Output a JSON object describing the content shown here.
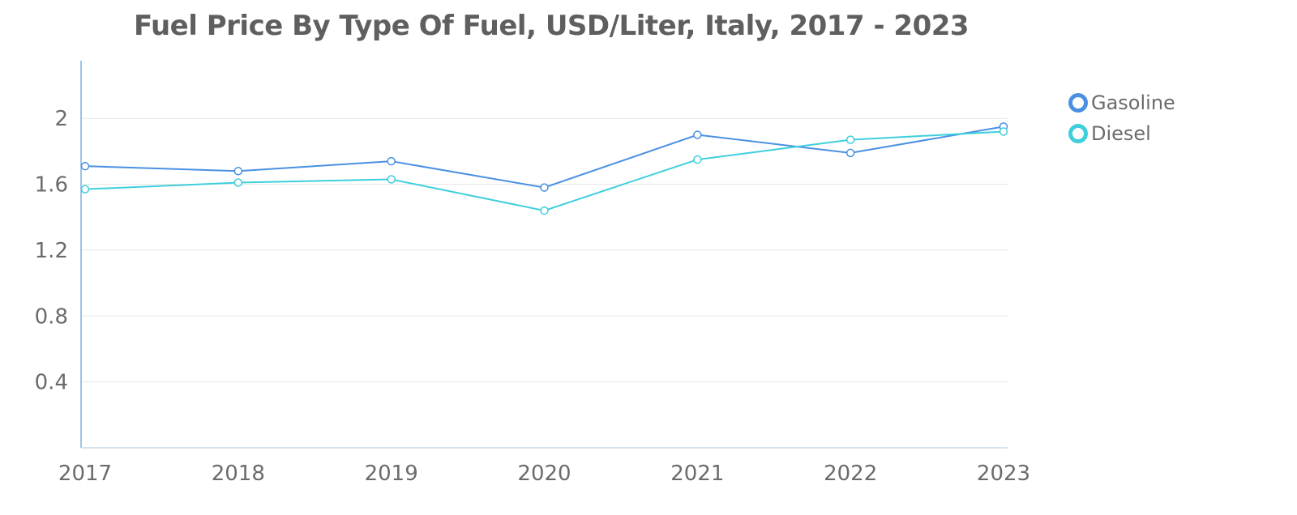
{
  "chart_data": {
    "type": "line",
    "title": "Fuel Price By Type Of Fuel, USD/Liter, Italy, 2017 - 2023",
    "xlabel": "",
    "ylabel": "",
    "categories": [
      "2017",
      "2018",
      "2019",
      "2020",
      "2021",
      "2022",
      "2023"
    ],
    "yticks": [
      0.4,
      0.8,
      1.2,
      1.6,
      2
    ],
    "ytick_labels": [
      "0.4",
      "0.8",
      "1.2",
      "1.6",
      "2"
    ],
    "ylim": [
      0,
      2.35
    ],
    "grid": true,
    "legend_position": "right",
    "series": [
      {
        "name": "Gasoline",
        "color": "#4a90e2",
        "values": [
          1.71,
          1.68,
          1.74,
          1.58,
          1.9,
          1.79,
          1.95
        ]
      },
      {
        "name": "Diesel",
        "color": "#3ecfdc",
        "values": [
          1.57,
          1.61,
          1.63,
          1.44,
          1.75,
          1.87,
          1.92
        ]
      }
    ]
  }
}
